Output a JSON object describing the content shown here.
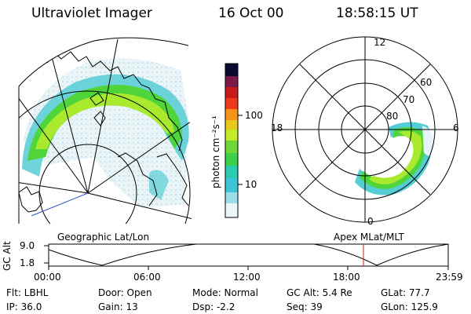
{
  "header": {
    "title": "Ultraviolet Imager",
    "date": "16 Oct 00",
    "time": "18:58:15 UT"
  },
  "colorbar": {
    "label": "photon cm⁻²s⁻¹",
    "ticks": [
      "100",
      "10"
    ]
  },
  "polar_plot": {
    "labels": [
      "12",
      "60",
      "70",
      "80",
      "18",
      "6",
      "0"
    ]
  },
  "timeline": {
    "left_title": "Geographic Lat/Lon",
    "right_title": "Apex MLat/MLT",
    "axis_label": "GC Alt",
    "y_ticks": [
      "9.0",
      "1.8"
    ],
    "x_ticks": [
      "00:00",
      "06:00",
      "12:00",
      "18:00",
      "23:59"
    ]
  },
  "info": {
    "row1": [
      "Flt: LBHL",
      "Door: Open",
      "Mode: Normal",
      "GC Alt: 5.4 Re",
      "GLat:  77.7"
    ],
    "row2": [
      "IP: 36.0",
      "Gain: 13",
      "Dsp:   -2.2",
      "Seq: 39",
      "GLon: 125.9"
    ]
  },
  "colors": {
    "aurora_dim": "#cfe8ef",
    "aurora_mid": "#55cdd4",
    "aurora_green": "#4fd53a",
    "aurora_lime": "#a9ea2e",
    "marker": "#c02020"
  }
}
